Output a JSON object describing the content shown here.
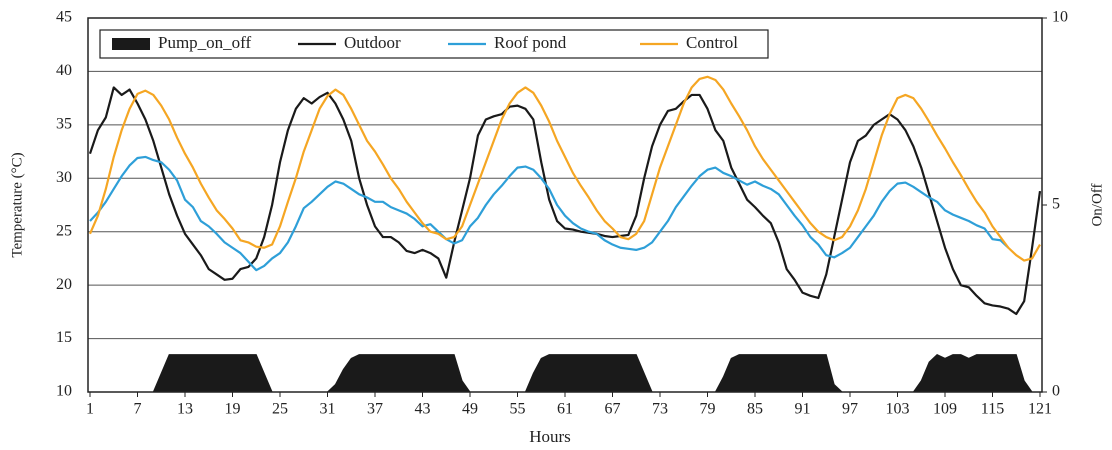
{
  "chart_data": {
    "type": "line",
    "xlabel": "Hours",
    "ylabel": "Temperature (°C)",
    "y2label": "On/Off",
    "x": [
      1,
      2,
      3,
      4,
      5,
      6,
      7,
      8,
      9,
      10,
      11,
      12,
      13,
      14,
      15,
      16,
      17,
      18,
      19,
      20,
      21,
      22,
      23,
      24,
      25,
      26,
      27,
      28,
      29,
      30,
      31,
      32,
      33,
      34,
      35,
      36,
      37,
      38,
      39,
      40,
      41,
      42,
      43,
      44,
      45,
      46,
      47,
      48,
      49,
      50,
      51,
      52,
      53,
      54,
      55,
      56,
      57,
      58,
      59,
      60,
      61,
      62,
      63,
      64,
      65,
      66,
      67,
      68,
      69,
      70,
      71,
      72,
      73,
      74,
      75,
      76,
      77,
      78,
      79,
      80,
      81,
      82,
      83,
      84,
      85,
      86,
      87,
      88,
      89,
      90,
      91,
      92,
      93,
      94,
      95,
      96,
      97,
      98,
      99,
      100,
      101,
      102,
      103,
      104,
      105,
      106,
      107,
      108,
      109,
      110,
      111,
      112,
      113,
      114,
      115,
      116,
      117,
      118,
      119,
      120,
      121
    ],
    "xlim": [
      1,
      121
    ],
    "xticks": [
      1,
      7,
      13,
      19,
      25,
      31,
      37,
      43,
      49,
      55,
      61,
      67,
      73,
      79,
      85,
      91,
      97,
      103,
      109,
      115,
      121
    ],
    "ylim": [
      10,
      45
    ],
    "yticks": [
      10,
      15,
      20,
      25,
      30,
      35,
      40,
      45
    ],
    "y2lim": [
      0,
      10
    ],
    "y2ticks": [
      0,
      5,
      10
    ],
    "grid": true,
    "legend": "top-left",
    "series": [
      {
        "name": "Pump_on_off",
        "type": "area",
        "axis": "y2",
        "color": "#1a1a1a",
        "values": [
          0,
          0,
          0,
          0,
          0,
          0,
          0,
          0,
          0,
          0.5,
          1,
          1,
          1,
          1,
          1,
          1,
          1,
          1,
          1,
          1,
          1,
          1,
          0.5,
          0,
          0,
          0,
          0,
          0,
          0,
          0,
          0,
          0.2,
          0.6,
          0.9,
          1,
          1,
          1,
          1,
          1,
          1,
          1,
          1,
          1,
          1,
          1,
          1,
          1,
          0.3,
          0,
          0,
          0,
          0,
          0,
          0,
          0,
          0,
          0.5,
          0.9,
          1,
          1,
          1,
          1,
          1,
          1,
          1,
          1,
          1,
          1,
          1,
          1,
          0.5,
          0,
          0,
          0,
          0,
          0,
          0,
          0,
          0,
          0,
          0.4,
          0.9,
          1,
          1,
          1,
          1,
          1,
          1,
          1,
          1,
          1,
          1,
          1,
          1,
          0.2,
          0,
          0,
          0,
          0,
          0,
          0,
          0,
          0,
          0,
          0,
          0.3,
          0.8,
          1,
          0.9,
          1,
          1,
          0.9,
          1,
          1,
          1,
          1,
          1,
          1,
          0.3,
          0,
          0
        ]
      },
      {
        "name": "Outdoor",
        "type": "line",
        "color": "#1a1a1a",
        "values": [
          32.3,
          34.5,
          35.7,
          38.5,
          37.8,
          38.3,
          37.0,
          35.5,
          33.5,
          31.0,
          28.5,
          26.5,
          24.8,
          23.8,
          22.8,
          21.5,
          21.0,
          20.5,
          20.6,
          21.5,
          21.7,
          22.5,
          24.5,
          27.5,
          31.5,
          34.5,
          36.5,
          37.5,
          37.0,
          37.6,
          38.0,
          37.0,
          35.5,
          33.5,
          30.0,
          27.5,
          25.5,
          24.5,
          24.5,
          24.0,
          23.2,
          23.0,
          23.3,
          23.0,
          22.5,
          20.7,
          24.0,
          27.0,
          30.0,
          34.0,
          35.5,
          35.8,
          36.0,
          36.7,
          36.8,
          36.5,
          35.5,
          31.5,
          28.0,
          26.0,
          25.3,
          25.2,
          25.0,
          24.9,
          24.8,
          24.6,
          24.5,
          24.6,
          24.7,
          26.5,
          30.0,
          33.0,
          35.0,
          36.3,
          36.5,
          37.2,
          37.8,
          37.8,
          36.5,
          34.5,
          33.5,
          31.0,
          29.5,
          28.0,
          27.3,
          26.5,
          25.8,
          24.0,
          21.5,
          20.5,
          19.3,
          19.0,
          18.8,
          21.0,
          24.5,
          28.0,
          31.5,
          33.5,
          34.0,
          35.0,
          35.5,
          36.0,
          35.5,
          34.5,
          33.0,
          31.0,
          28.5,
          26.0,
          23.5,
          21.5,
          20.0,
          19.8,
          19.0,
          18.3,
          18.1,
          18.0,
          17.8,
          17.3,
          18.5,
          23.5,
          28.8
        ]
      },
      {
        "name": "Roof pond",
        "type": "line",
        "color": "#2e9fd8",
        "values": [
          26.0,
          26.8,
          27.8,
          29.0,
          30.2,
          31.2,
          31.9,
          32.0,
          31.7,
          31.5,
          30.8,
          29.8,
          28.0,
          27.3,
          26.0,
          25.5,
          24.8,
          24.0,
          23.5,
          23.0,
          22.2,
          21.4,
          21.8,
          22.5,
          23.0,
          24.0,
          25.5,
          27.2,
          27.8,
          28.5,
          29.2,
          29.7,
          29.5,
          29.0,
          28.5,
          28.2,
          27.8,
          27.8,
          27.3,
          27.0,
          26.7,
          26.2,
          25.5,
          25.7,
          25.0,
          24.3,
          23.9,
          24.2,
          25.5,
          26.3,
          27.5,
          28.5,
          29.3,
          30.2,
          31.0,
          31.1,
          30.8,
          30.0,
          29.0,
          27.5,
          26.5,
          25.8,
          25.3,
          25.0,
          24.8,
          24.2,
          23.8,
          23.5,
          23.4,
          23.3,
          23.5,
          24.0,
          25.0,
          26.0,
          27.3,
          28.3,
          29.3,
          30.2,
          30.8,
          31.0,
          30.5,
          30.2,
          29.8,
          29.4,
          29.7,
          29.3,
          29.0,
          28.5,
          27.5,
          26.5,
          25.6,
          24.5,
          23.8,
          22.8,
          22.6,
          23.0,
          23.5,
          24.5,
          25.5,
          26.5,
          27.8,
          28.8,
          29.5,
          29.6,
          29.2,
          28.7,
          28.2,
          27.8,
          27.0,
          26.6,
          26.3,
          26.0,
          25.6,
          25.3,
          24.3,
          24.2,
          23.5,
          null,
          null,
          null,
          null
        ]
      },
      {
        "name": "Control",
        "type": "line",
        "color": "#f5a623",
        "values": [
          24.8,
          26.5,
          29.0,
          32.0,
          34.5,
          36.5,
          37.9,
          38.2,
          37.8,
          36.8,
          35.5,
          33.8,
          32.3,
          31.0,
          29.5,
          28.2,
          27.0,
          26.2,
          25.3,
          24.2,
          24.0,
          23.6,
          23.5,
          23.8,
          25.5,
          27.8,
          30.0,
          32.5,
          34.5,
          36.5,
          37.7,
          38.3,
          37.8,
          36.5,
          35.0,
          33.5,
          32.5,
          31.3,
          30.0,
          29.0,
          27.8,
          26.8,
          25.8,
          25.0,
          24.8,
          24.3,
          24.5,
          25.5,
          27.5,
          29.5,
          31.5,
          33.5,
          35.5,
          37.0,
          38.0,
          38.5,
          38.0,
          36.8,
          35.3,
          33.5,
          32.0,
          30.5,
          29.3,
          28.2,
          27.0,
          26.0,
          25.3,
          24.5,
          24.3,
          24.8,
          26.0,
          28.5,
          31.0,
          33.0,
          35.0,
          37.0,
          38.5,
          39.3,
          39.5,
          39.2,
          38.3,
          37.0,
          35.8,
          34.5,
          33.0,
          31.8,
          30.8,
          29.8,
          28.8,
          27.8,
          26.8,
          25.8,
          25.0,
          24.5,
          24.2,
          24.5,
          25.5,
          27.0,
          29.0,
          31.5,
          34.0,
          36.0,
          37.5,
          37.8,
          37.5,
          36.5,
          35.3,
          34.0,
          32.8,
          31.5,
          30.3,
          29.0,
          27.8,
          26.8,
          25.5,
          24.5,
          23.5,
          22.8,
          22.3,
          22.5,
          23.8
        ]
      }
    ]
  }
}
